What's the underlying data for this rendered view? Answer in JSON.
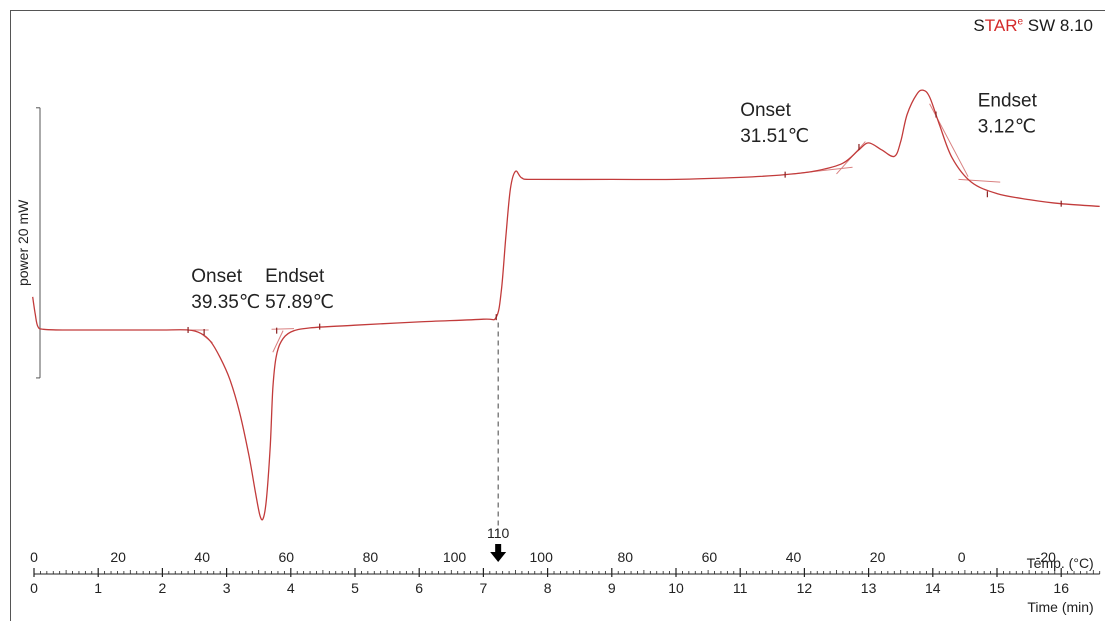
{
  "brand": {
    "prefix_s": "S",
    "red_part": "TAR",
    "superscript": "e",
    "version": "SW 8.10"
  },
  "chart_data": {
    "type": "line",
    "title": "",
    "ylabel": "power 20 mW",
    "x_axis_time": {
      "label": "Time (min)",
      "range": [
        0,
        16.6
      ],
      "ticks": [
        0,
        1,
        2,
        3,
        4,
        5,
        6,
        7,
        8,
        9,
        10,
        11,
        12,
        13,
        14,
        15,
        16
      ],
      "minor_step": 0.1
    },
    "x_axis_temp": {
      "label": "Temp. (°C)",
      "ticks": [
        {
          "label": "0",
          "time": 0.0
        },
        {
          "label": "20",
          "time": 1.31
        },
        {
          "label": "40",
          "time": 2.62
        },
        {
          "label": "60",
          "time": 3.93
        },
        {
          "label": "80",
          "time": 5.24
        },
        {
          "label": "100",
          "time": 6.55
        },
        {
          "label": "100",
          "time": 7.9
        },
        {
          "label": "80",
          "time": 9.21
        },
        {
          "label": "60",
          "time": 10.52
        },
        {
          "label": "40",
          "time": 11.83
        },
        {
          "label": "20",
          "time": 13.14
        },
        {
          "label": "0",
          "time": 14.45
        },
        {
          "label": "-20",
          "time": 15.76
        }
      ],
      "turnaround": {
        "label": "110",
        "time": 7.23
      }
    },
    "scale_bar": {
      "label": "power 20 mW",
      "mw": 20
    },
    "series": [
      {
        "color": "#c23b3b",
        "points": [
          [
            -0.02,
            16.5
          ],
          [
            0.02,
            15.2
          ],
          [
            0.06,
            14.3
          ],
          [
            0.15,
            14.1
          ],
          [
            0.5,
            14.05
          ],
          [
            1.0,
            14.05
          ],
          [
            1.5,
            14.05
          ],
          [
            2.0,
            14.05
          ],
          [
            2.4,
            14.05
          ],
          [
            2.6,
            13.8
          ],
          [
            2.75,
            13.2
          ],
          [
            2.9,
            12.0
          ],
          [
            3.05,
            10.4
          ],
          [
            3.2,
            8.0
          ],
          [
            3.35,
            4.7
          ],
          [
            3.45,
            2.0
          ],
          [
            3.52,
            0.3
          ],
          [
            3.57,
            0.1
          ],
          [
            3.62,
            1.5
          ],
          [
            3.68,
            5.5
          ],
          [
            3.72,
            9.7
          ],
          [
            3.77,
            12.0
          ],
          [
            3.85,
            13.2
          ],
          [
            4.0,
            13.9
          ],
          [
            4.3,
            14.2
          ],
          [
            5.0,
            14.4
          ],
          [
            6.0,
            14.65
          ],
          [
            7.0,
            14.85
          ],
          [
            7.2,
            15.0
          ],
          [
            7.28,
            17.0
          ],
          [
            7.35,
            21.0
          ],
          [
            7.42,
            24.5
          ],
          [
            7.5,
            25.8
          ],
          [
            7.6,
            25.3
          ],
          [
            7.8,
            25.2
          ],
          [
            9.0,
            25.2
          ],
          [
            10.0,
            25.2
          ],
          [
            11.0,
            25.35
          ],
          [
            11.7,
            25.55
          ],
          [
            12.2,
            25.85
          ],
          [
            12.6,
            26.4
          ],
          [
            12.85,
            27.4
          ],
          [
            13.0,
            27.9
          ],
          [
            13.2,
            27.4
          ],
          [
            13.4,
            26.9
          ],
          [
            13.5,
            28.0
          ],
          [
            13.6,
            30.0
          ],
          [
            13.75,
            31.5
          ],
          [
            13.85,
            31.8
          ],
          [
            13.95,
            31.3
          ],
          [
            14.1,
            29.3
          ],
          [
            14.3,
            26.8
          ],
          [
            14.6,
            25.0
          ],
          [
            15.0,
            24.15
          ],
          [
            15.5,
            23.7
          ],
          [
            16.0,
            23.4
          ],
          [
            16.6,
            23.2
          ]
        ]
      }
    ],
    "annotations": [
      {
        "text": "Onset",
        "value": "39.35℃",
        "time": 2.45,
        "y": 17.6
      },
      {
        "text": "Endset",
        "value": "57.89℃",
        "time": 3.6,
        "y": 17.6
      },
      {
        "text": "Onset",
        "value": "31.51℃",
        "time": 11.0,
        "y": 29.9
      },
      {
        "text": "Endset",
        "value": "3.12℃",
        "time": 14.7,
        "y": 30.6
      }
    ],
    "construction_lines": [
      {
        "points": [
          [
            2.35,
            14.05
          ],
          [
            2.72,
            14.05
          ]
        ]
      },
      {
        "points": [
          [
            2.6,
            13.8
          ],
          [
            2.78,
            13.1
          ]
        ]
      },
      {
        "points": [
          [
            3.7,
            14.1
          ],
          [
            4.05,
            14.15
          ]
        ]
      },
      {
        "points": [
          [
            3.72,
            12.4
          ],
          [
            3.88,
            14.0
          ]
        ]
      },
      {
        "points": [
          [
            11.8,
            25.6
          ],
          [
            12.75,
            26.1
          ]
        ]
      },
      {
        "points": [
          [
            12.5,
            25.6
          ],
          [
            12.95,
            28.0
          ]
        ]
      },
      {
        "points": [
          [
            13.95,
            30.8
          ],
          [
            14.55,
            25.4
          ]
        ]
      },
      {
        "points": [
          [
            14.4,
            25.2
          ],
          [
            15.05,
            25.0
          ]
        ]
      }
    ],
    "markers": [
      {
        "time": 2.4,
        "y": 14.05
      },
      {
        "time": 2.65,
        "y": 13.9
      },
      {
        "time": 3.78,
        "y": 14.0
      },
      {
        "time": 4.45,
        "y": 14.3
      },
      {
        "time": 7.2,
        "y": 15.0
      },
      {
        "time": 11.7,
        "y": 25.55
      },
      {
        "time": 12.85,
        "y": 27.6
      },
      {
        "time": 14.05,
        "y": 30.0
      },
      {
        "time": 14.85,
        "y": 24.1
      },
      {
        "time": 16.0,
        "y": 23.4
      }
    ],
    "y_range": [
      -1.5,
      37
    ],
    "scale_bar_range": [
      10.5,
      30.5
    ],
    "grid": false,
    "legend": "none"
  }
}
